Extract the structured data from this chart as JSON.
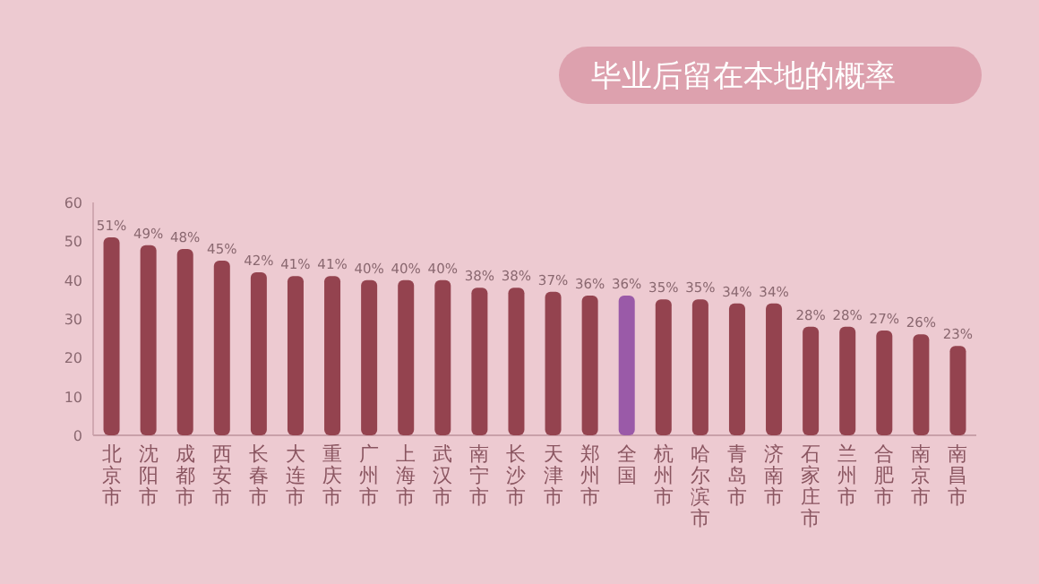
{
  "chart_data": {
    "type": "bar",
    "title": "毕业后留在本地的概率",
    "categories": [
      "北京市",
      "沈阳市",
      "成都市",
      "西安市",
      "长春市",
      "大连市",
      "重庆市",
      "广州市",
      "上海市",
      "武汉市",
      "南宁市",
      "长沙市",
      "天津市",
      "郑州市",
      "全国",
      "杭州市",
      "哈尔滨市",
      "青岛市",
      "济南市",
      "石家庄市",
      "兰州市",
      "合肥市",
      "南京市",
      "南昌市"
    ],
    "values": [
      51,
      49,
      48,
      45,
      42,
      41,
      41,
      40,
      40,
      40,
      38,
      38,
      37,
      36,
      36,
      35,
      35,
      34,
      34,
      28,
      28,
      27,
      26,
      23
    ],
    "value_labels": [
      "51%",
      "49%",
      "48%",
      "45%",
      "42%",
      "41%",
      "41%",
      "40%",
      "40%",
      "40%",
      "38%",
      "38%",
      "37%",
      "36%",
      "36%",
      "35%",
      "35%",
      "34%",
      "34%",
      "28%",
      "28%",
      "27%",
      "26%",
      "23%"
    ],
    "colors": [
      "#94434f",
      "#94434f",
      "#94434f",
      "#94434f",
      "#94434f",
      "#94434f",
      "#94434f",
      "#94434f",
      "#94434f",
      "#94434f",
      "#94434f",
      "#94434f",
      "#94434f",
      "#94434f",
      "#9a5aa8",
      "#94434f",
      "#94434f",
      "#94434f",
      "#94434f",
      "#94434f",
      "#94434f",
      "#94434f",
      "#94434f",
      "#94434f"
    ],
    "ylim": [
      0,
      60
    ],
    "yticks": [
      0,
      10,
      20,
      30,
      40,
      50,
      60
    ],
    "grid": false
  }
}
